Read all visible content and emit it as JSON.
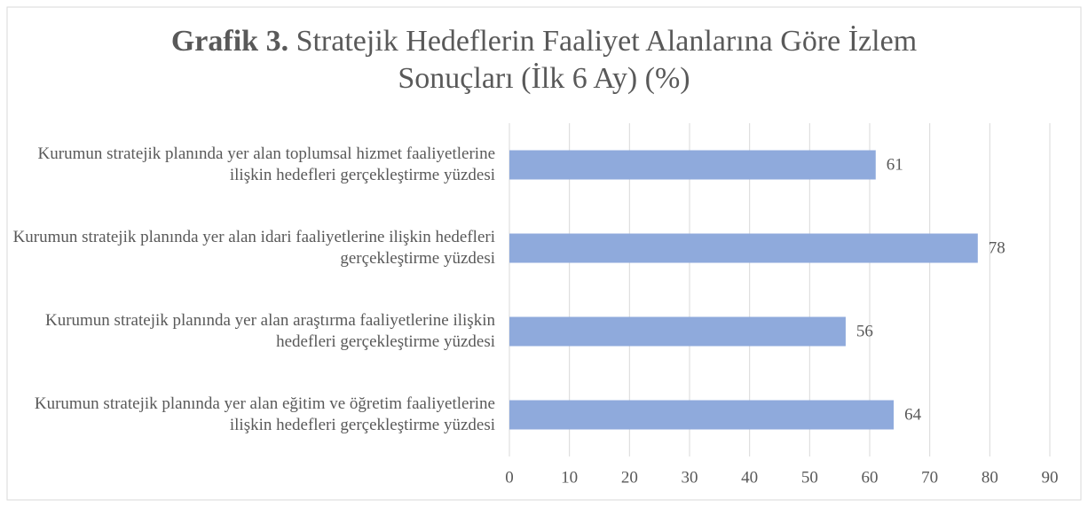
{
  "chart_data": {
    "type": "barh",
    "title_label": "Grafik 3.",
    "title": "Stratejik Hedeflerin Faaliyet Alanlarına Göre İzlem Sonuçları (İlk 6 Ay) (%)",
    "categories": [
      "Kurumun stratejik planında yer alan toplumsal hizmet faaliyetlerine ilişkin hedefleri gerçekleştirme yüzdesi",
      "Kurumun stratejik planında yer alan idari faaliyetlerine ilişkin hedefleri gerçekleştirme yüzdesi",
      "Kurumun stratejik planında yer alan araştırma faaliyetlerine ilişkin hedefleri gerçekleştirme yüzdesi",
      "Kurumun stratejik planında yer alan eğitim ve öğretim faaliyetlerine ilişkin hedefleri gerçekleştirme yüzdesi"
    ],
    "values": [
      61,
      78,
      56,
      64
    ],
    "color": "#8faadc",
    "xlim": [
      0,
      90
    ],
    "xticks": [
      0,
      10,
      20,
      30,
      40,
      50,
      60,
      70,
      80,
      90
    ],
    "grid": true
  }
}
